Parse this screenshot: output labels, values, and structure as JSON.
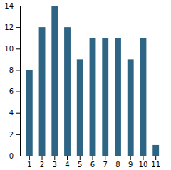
{
  "chart_data": {
    "type": "bar",
    "categories": [
      1,
      2,
      3,
      4,
      5,
      6,
      7,
      8,
      9,
      10,
      11
    ],
    "values": [
      8,
      12,
      14,
      12,
      9,
      11,
      11,
      11,
      9,
      11,
      1
    ],
    "color": "#2e6584",
    "ylim": [
      0,
      14
    ],
    "yticks": [
      0,
      2,
      4,
      6,
      8,
      10,
      12,
      14
    ],
    "grid": false
  }
}
